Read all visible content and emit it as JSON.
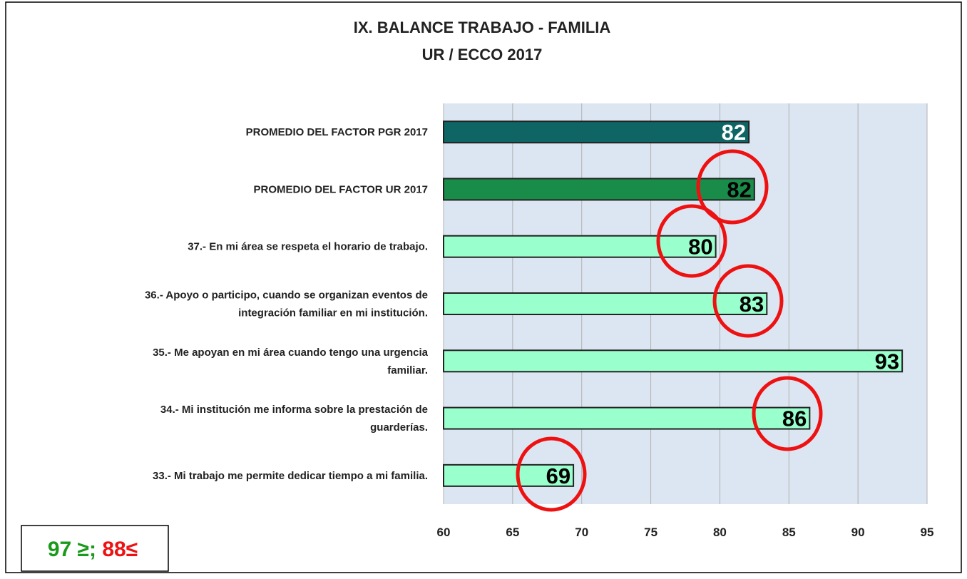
{
  "chart_data": {
    "type": "barh",
    "title": "IX. BALANCE TRABAJO - FAMILIA",
    "subtitle": "UR / ECCO 2017",
    "categories": [
      "PROMEDIO DEL FACTOR PGR 2017",
      "PROMEDIO DEL FACTOR UR 2017",
      "37.- En mi área se respeta el horario de trabajo.",
      "36.- Apoyo o participo, cuando se organizan eventos de\nintegración familiar en mi institución.",
      "35.- Me apoyan en mi área cuando tengo una urgencia\nfamiliar.",
      "34.- Mi institución me informa sobre la prestación de\nguarderías.",
      "33.- Mi trabajo me permite dedicar tiempo a mi familia."
    ],
    "values": [
      82.1,
      82.5,
      79.7,
      83.4,
      93.2,
      86.5,
      69.4
    ],
    "value_labels": [
      "82",
      "82",
      "80",
      "83",
      "93",
      "86",
      "69"
    ],
    "colors": [
      "#0f6464",
      "#1a8c4a",
      "#99ffcc",
      "#99ffcc",
      "#99ffcc",
      "#99ffcc",
      "#99ffcc"
    ],
    "label_colors": [
      "#ffffff",
      "#000000",
      "#000000",
      "#000000",
      "#000000",
      "#000000",
      "#000000"
    ],
    "xlim": [
      60,
      95
    ],
    "xticks": [
      60,
      65,
      70,
      75,
      80,
      85,
      90,
      95
    ],
    "grid": true,
    "note": [
      "97 ≥;",
      "88≤"
    ]
  }
}
